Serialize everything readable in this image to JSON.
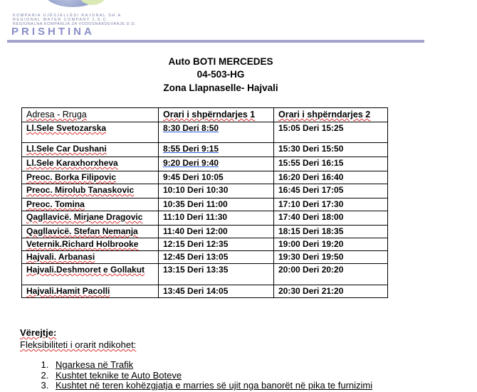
{
  "logo": {
    "line1": "KOMPANIA UJËSJELLËSI RAJONAL SH.A",
    "line2": "REGIONAL WATER COMPANY J.S.C.",
    "line3": "REGIONALNA KOMPANIJA ZA VODOSNABDEVANJE D.D.",
    "name": "PRISHTINA",
    "accent": "#a3a3cc"
  },
  "title": {
    "line1": "Auto BOTI MERCEDES",
    "line2": "04-503-HG",
    "line3": "Zona Llapnaselle- Hajvali"
  },
  "table": {
    "headers": [
      "Adresa - Rruga",
      "Orari i shpërndarjes 1",
      "Orari i shpërndarjes 2"
    ],
    "rows": [
      [
        "Ll.Sele Svetozarska",
        "8:30  Deri 8:50",
        "15:05 Deri 15:25"
      ],
      [
        "Ll.Sele Car Dushani",
        "8:55  Deri 9:15",
        "15:30 Deri 15:50"
      ],
      [
        "Ll.Sele Karaxhorxheva",
        "9:20  Deri  9:40",
        "15:55 Deri 16:15"
      ],
      [
        "Preoc. Borka Filipovic",
        "9:45 Deri 10:05",
        "16:20 Deri 16:40"
      ],
      [
        "Preoc. Mirolub Tanaskovic",
        "10:10 Deri 10:30",
        "16:45 Deri 17:05"
      ],
      [
        "Preoc. Tomina",
        "10:35 Deri 11:00",
        "17:10 Deri 17:30"
      ],
      [
        "Qagllavicë. Mirjane Dragovic",
        "11:10 Deri 11:30",
        "17:40 Deri 18:00"
      ],
      [
        "Qagllavicë. Stefan Nemanja",
        "11:40 Deri 12:00",
        "18:15 Deri 18:35"
      ],
      [
        "Veternik.Richard Holbrooke",
        "12:15 Deri 12:35",
        "19:00 Deri 19:20"
      ],
      [
        "Hajvali. Arbanasi",
        "12:45 Deri 13:05",
        "19:30 Deri 19:50"
      ],
      [
        "Hajvali.Deshmoret e Gollakut",
        "13:15 Deri 13:35",
        "20:00 Deri 20:20"
      ],
      [
        "Hajvali.Hamit Pacolli",
        "13:45 Deri 14:05",
        "20:30 Deri 21:20"
      ]
    ]
  },
  "notes": {
    "heading": "Vërejtje:",
    "intro": "Fleksibiliteti i orarit ndikohet:",
    "items": [
      "Ngarkesa në Trafik",
      "Kushtet teknike te Auto Boteve",
      "Kushtet në teren kohëzgjatja e marries së ujit nga banorët në pika te furnizimi"
    ]
  }
}
